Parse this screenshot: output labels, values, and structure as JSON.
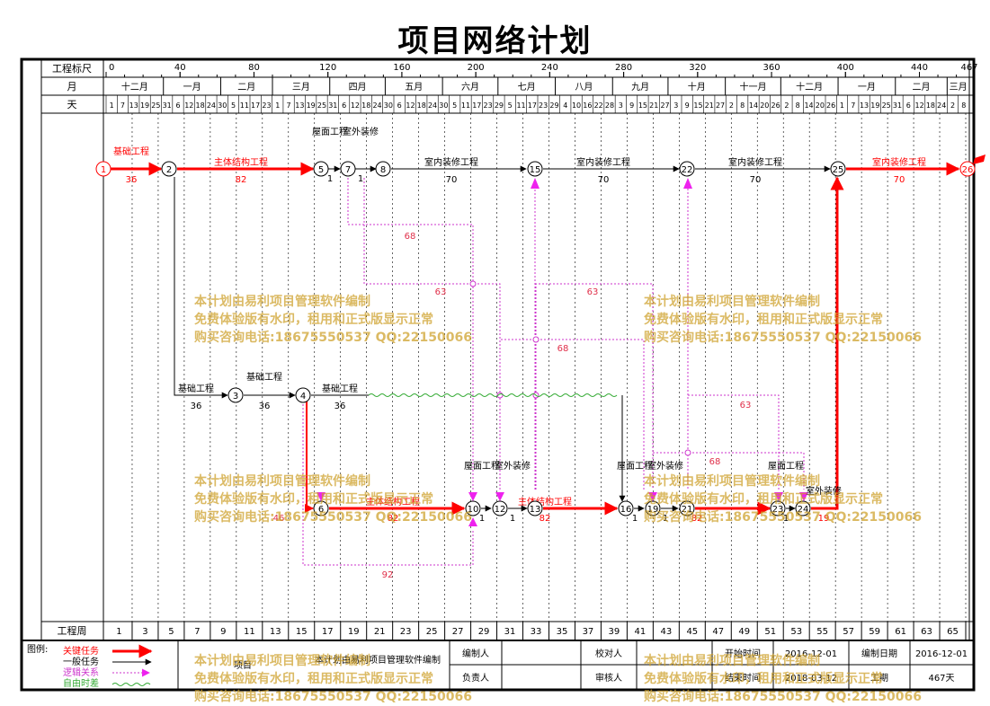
{
  "title": "项目网络计划",
  "header": {
    "scale_label": "工程标尺",
    "month_label": "月",
    "day_label": "天",
    "scale_ticks": [
      "0",
      "40",
      "80",
      "120",
      "160",
      "200",
      "240",
      "280",
      "320",
      "360",
      "400",
      "440",
      "467"
    ],
    "months": [
      "十二月",
      "一月",
      "二月",
      "三月",
      "四月",
      "五月",
      "六月",
      "七月",
      "八月",
      "九月",
      "十月",
      "十一月",
      "十二月",
      "一月",
      "二月",
      "三月"
    ],
    "days": [
      "1",
      "7",
      "13",
      "19",
      "25",
      "31",
      "6",
      "12",
      "18",
      "24",
      "30",
      "5",
      "11",
      "17",
      "23",
      "1",
      "7",
      "13",
      "19",
      "25",
      "31",
      "6",
      "12",
      "18",
      "24",
      "30",
      "6",
      "12",
      "18",
      "24",
      "30",
      "5",
      "11",
      "17",
      "23",
      "29",
      "5",
      "11",
      "17",
      "23",
      "29",
      "4",
      "10",
      "16",
      "22",
      "28",
      "3",
      "9",
      "15",
      "21",
      "27",
      "3",
      "9",
      "15",
      "21",
      "27",
      "2",
      "8",
      "14",
      "20",
      "26",
      "2",
      "8",
      "14",
      "20",
      "26",
      "1",
      "7",
      "13",
      "19",
      "25",
      "31",
      "6",
      "12",
      "18",
      "24",
      "2",
      "8"
    ]
  },
  "footer": {
    "week_label": "工程周",
    "weeks": [
      "1",
      "3",
      "5",
      "7",
      "9",
      "11",
      "13",
      "15",
      "17",
      "19",
      "21",
      "23",
      "25",
      "27",
      "29",
      "31",
      "33",
      "35",
      "37",
      "39",
      "41",
      "43",
      "45",
      "47",
      "49",
      "51",
      "53",
      "55",
      "57",
      "59",
      "61",
      "63",
      "65"
    ]
  },
  "legend": {
    "title": "图例:",
    "items": [
      "关键任务",
      "一般任务",
      "逻辑关系",
      "自由时差"
    ],
    "colors": {
      "critical": "#ff0000",
      "normal": "#000000",
      "logic": "#cc33cc",
      "float": "#33aa33"
    }
  },
  "info": {
    "project_label": "项目",
    "software_text": "本计划由易利项目管理软件编制",
    "compiler_label": "编制人",
    "reviewer_label": "校对人",
    "start_label": "开始时间",
    "start_value": "2016-12-01",
    "compile_date_label": "编制日期",
    "compile_date_value": "2016-12-01",
    "owner_label": "负责人",
    "auditor_label": "审核人",
    "end_label": "结束时间",
    "end_value": "2018-03-12",
    "duration_label": "工期",
    "duration_value": "467天"
  },
  "watermark": {
    "lines": [
      "本计划由易利项目管理软件编制",
      "免费体验版有水印，租用和正式版显示正常",
      "购买咨询电话:18675550537 QQ:22150066"
    ]
  },
  "nodes": [
    "1",
    "2",
    "3",
    "4",
    "5",
    "6",
    "7",
    "8",
    "10",
    "12",
    "13",
    "15",
    "16",
    "19",
    "21",
    "22",
    "23",
    "24",
    "25",
    "26"
  ],
  "tasks": [
    {
      "name": "基础工程",
      "duration": "36",
      "type": "critical"
    },
    {
      "name": "主体结构工程",
      "duration": "82",
      "type": "critical"
    },
    {
      "name": "屋面工程",
      "duration": "1",
      "type": "normal"
    },
    {
      "name": "室外装修",
      "duration": "1",
      "type": "normal"
    },
    {
      "name": "室内装修工程",
      "duration": "70",
      "type": "normal"
    },
    {
      "name": "室内装修工程",
      "duration": "70",
      "type": "normal"
    },
    {
      "name": "室内装修工程",
      "duration": "70",
      "type": "normal"
    },
    {
      "name": "室内装修工程",
      "duration": "70",
      "type": "critical"
    },
    {
      "name": "基础工程",
      "duration": "36",
      "type": "normal"
    },
    {
      "name": "基础工程",
      "duration": "36",
      "type": "normal"
    },
    {
      "name": "基础工程",
      "duration": "36",
      "type": "normal"
    },
    {
      "name": "主体结构工程",
      "duration": "82",
      "type": "critical"
    },
    {
      "name": "屋面工程",
      "duration": "1",
      "type": "critical"
    },
    {
      "name": "室外装修",
      "duration": "1",
      "type": "critical"
    },
    {
      "name": "主体结构工程",
      "duration": "82",
      "type": "critical"
    },
    {
      "name": "屋面工程",
      "duration": "1",
      "type": "critical"
    },
    {
      "name": "室外装修",
      "duration": "1",
      "type": "critical"
    },
    {
      "name": "主体结构工程",
      "duration": "82",
      "type": "critical"
    },
    {
      "name": "屋面工程",
      "duration": "1",
      "type": "critical"
    },
    {
      "name": "室外装修",
      "duration": "19",
      "type": "critical"
    }
  ],
  "logic_labels": [
    "68",
    "63",
    "63",
    "68",
    "63",
    "68",
    "46",
    "92"
  ]
}
